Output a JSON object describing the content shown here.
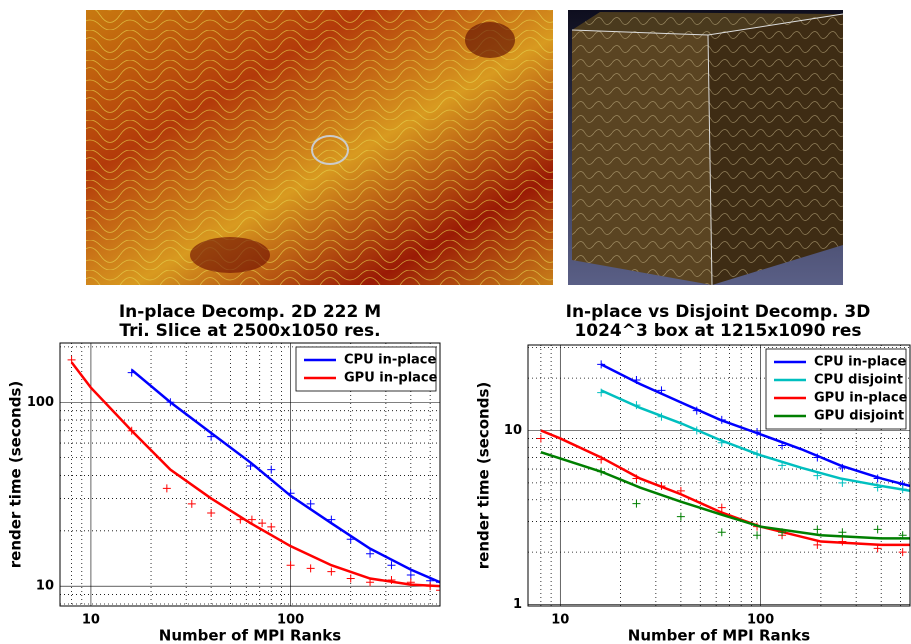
{
  "chart_data": [
    {
      "type": "line",
      "title": [
        "In-place Decomp. 2D 222 M",
        "Tri. Slice at 2500x1050 res."
      ],
      "x_label": "Number of MPI Ranks",
      "y_label": "render time (seconds)",
      "xscale": "log",
      "yscale": "log",
      "xlim": [
        7,
        560
      ],
      "ylim": [
        7.8,
        210
      ],
      "xticks": [
        10,
        100
      ],
      "yticks": [
        10,
        100
      ],
      "xminor_ticks": [
        8,
        9,
        20,
        30,
        40,
        50,
        60,
        70,
        80,
        90,
        200,
        300,
        400,
        500
      ],
      "yminor_ticks": [
        8,
        9,
        20,
        30,
        40,
        50,
        60,
        70,
        80,
        90,
        200
      ],
      "grid": true,
      "legend": "upper right",
      "series": [
        {
          "name": "CPU in-place",
          "color": "#0000ff",
          "fit": {
            "x": [
              16,
              25,
              40,
              63,
              100,
              160,
              250,
              400,
              560
            ],
            "values": [
              150,
              100,
              68,
              47,
              31,
              22,
              16,
              12.3,
              10.5
            ]
          },
          "samples": {
            "x": [
              16,
              25,
              40,
              63,
              80,
              100,
              126,
              160,
              200,
              250,
              320,
              400,
              500,
              560
            ],
            "values": [
              145,
              100,
              65,
              45,
              43,
              32,
              28,
              23,
              18,
              15,
              13,
              11.5,
              10.7,
              10.5
            ]
          }
        },
        {
          "name": "GPU in-place",
          "color": "#ff0000",
          "fit": {
            "x": [
              8,
              10,
              16,
              25,
              40,
              63,
              100,
              160,
              250,
              400,
              560
            ],
            "values": [
              165,
              120,
              70,
              43,
              30,
              22,
              16.5,
              13,
              11,
              10.2,
              10
            ]
          },
          "samples": {
            "x": [
              8,
              16,
              24,
              32,
              40,
              56,
              64,
              72,
              80,
              100,
              126,
              160,
              200,
              250,
              320,
              400,
              500,
              560
            ],
            "values": [
              170,
              70,
              34,
              28,
              25,
              23,
              23,
              22,
              21,
              13,
              12.5,
              12,
              11,
              10.5,
              10.8,
              10.5,
              10,
              9.5
            ]
          }
        }
      ]
    },
    {
      "type": "line",
      "title": [
        "In-place vs Disjoint Decomp. 3D",
        "1024^3 box at 1215x1090 res"
      ],
      "x_label": "Number of MPI Ranks",
      "y_label": "render time (seconds)",
      "xscale": "log",
      "yscale": "log",
      "xlim": [
        6.9,
        557
      ],
      "ylim": [
        0.98,
        31
      ],
      "xticks": [
        10,
        100
      ],
      "yticks": [
        1,
        10
      ],
      "xminor_ticks": [
        8,
        9,
        20,
        30,
        40,
        50,
        60,
        70,
        80,
        90,
        200,
        300,
        400,
        500
      ],
      "yminor_ticks": [
        2,
        3,
        4,
        5,
        6,
        7,
        8,
        9,
        20,
        30
      ],
      "grid": true,
      "legend": "upper right",
      "series": [
        {
          "name": "CPU in-place",
          "color": "#0000ff",
          "fit": {
            "x": [
              16,
              25,
              40,
              63,
              100,
              160,
              250,
              400,
              557
            ],
            "values": [
              24,
              18.5,
              14.5,
              11.5,
              9.5,
              7.8,
              6.3,
              5.3,
              4.8
            ]
          },
          "samples": {
            "x": [
              16,
              24,
              32,
              48,
              64,
              96,
              128,
              192,
              256,
              384,
              512
            ],
            "values": [
              24,
              19.5,
              17,
              13,
              11.5,
              9.8,
              8.2,
              7,
              6.1,
              5.3,
              4.9
            ]
          }
        },
        {
          "name": "CPU disjoint",
          "color": "#00bfbf",
          "fit": {
            "x": [
              16,
              25,
              40,
              63,
              100,
              160,
              250,
              400,
              557
            ],
            "values": [
              17,
              13.5,
              11,
              8.8,
              7.2,
              6.1,
              5.3,
              4.8,
              4.5
            ]
          },
          "samples": {
            "x": [
              16,
              24,
              32,
              48,
              64,
              96,
              128,
              192,
              256,
              384,
              512
            ],
            "values": [
              16.5,
              14,
              12,
              10,
              8.5,
              7.3,
              6.3,
              5.5,
              5,
              4.7,
              4.6
            ]
          }
        },
        {
          "name": "GPU in-place",
          "color": "#ff0000",
          "fit": {
            "x": [
              8,
              10,
              16,
              25,
              40,
              63,
              100,
              200,
              400,
              557
            ],
            "values": [
              10,
              9,
              7,
              5.3,
              4.3,
              3.4,
              2.8,
              2.3,
              2.2,
              2.2
            ]
          },
          "samples": {
            "x": [
              8,
              16,
              24,
              32,
              40,
              64,
              96,
              128,
              192,
              256,
              384,
              512
            ],
            "values": [
              9,
              6.8,
              5.3,
              4.8,
              4.5,
              3.6,
              2.8,
              2.5,
              2.2,
              2.3,
              2.1,
              2
            ]
          }
        },
        {
          "name": "GPU disjoint",
          "color": "#007f00",
          "fit": {
            "x": [
              8,
              16,
              25,
              40,
              63,
              100,
              200,
              400,
              557
            ],
            "values": [
              7.5,
              5.8,
              4.7,
              3.9,
              3.3,
              2.8,
              2.5,
              2.4,
              2.4
            ]
          },
          "samples": {
            "x": [
              16,
              24,
              40,
              64,
              96,
              128,
              192,
              256,
              384,
              512
            ],
            "values": [
              5.8,
              3.8,
              3.2,
              2.6,
              2.5,
              2.6,
              2.7,
              2.6,
              2.7,
              2.5
            ]
          }
        }
      ]
    }
  ]
}
